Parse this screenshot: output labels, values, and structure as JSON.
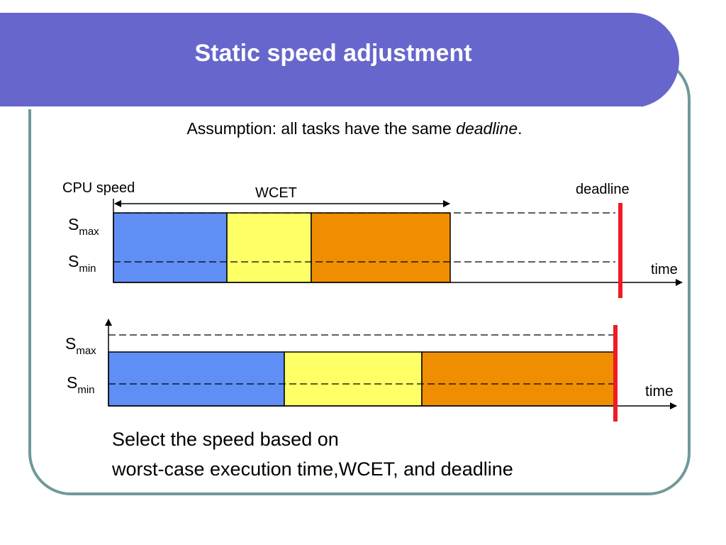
{
  "slide": {
    "title": "Static speed adjustment",
    "assumption_prefix": "Assumption: all tasks have the same ",
    "assumption_emphasis": "deadline",
    "assumption_suffix": ".",
    "summary_line1": "Select the speed based on",
    "summary_line2": "worst-case execution time,WCET, and  deadline"
  },
  "diagram": {
    "top_plot": {
      "y_axis_label": "CPU speed",
      "wcet_label": "WCET",
      "deadline_label": "deadline",
      "time_label": "time",
      "smax_main": "S",
      "smax_sub": "max",
      "smin_main": "S",
      "smin_sub": "min"
    },
    "bottom_plot": {
      "time_label": "time",
      "smax_main": "S",
      "smax_sub": "max",
      "smin_main": "S",
      "smin_sub": "min"
    },
    "colors": {
      "task1": "#5f8ef5",
      "task2": "#ffff66",
      "task3": "#ee8e00",
      "deadline": "#ee1c24",
      "title_bar": "#6666cc",
      "frame": "#6e9a98"
    }
  }
}
